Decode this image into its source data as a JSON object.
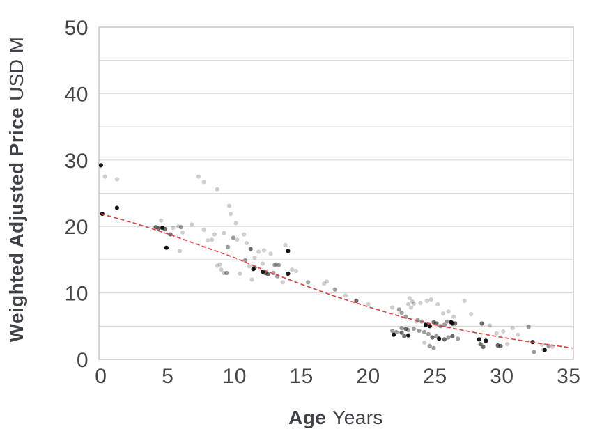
{
  "chart_data": {
    "type": "scatter",
    "title": "",
    "x_axis": {
      "title_bold": "Age",
      "title_regular": "Years",
      "ticks": [
        0,
        5,
        10,
        15,
        20,
        25,
        30,
        35
      ],
      "range": [
        0,
        35.3
      ]
    },
    "y_axis": {
      "title_bold": "Weighted Adjusted Price",
      "title_regular": "USD M",
      "ticks": [
        0,
        10,
        20,
        30,
        40,
        50
      ],
      "range": [
        0,
        50
      ],
      "gridline_step": 5
    },
    "grid": "horizontal-only",
    "legend": "none",
    "colors": {
      "text": "#43454a",
      "gridline": "#dddddd",
      "plot_border": "#c6c6c6",
      "trend": "#e04444",
      "point_base": "#0a0a0a"
    },
    "point_shades": {
      "1": "rgba(10,10,10,0.95)",
      "2": "rgba(10,10,10,0.60)",
      "3": "rgba(10,10,10,0.40)",
      "4": "rgba(10,10,10,0.20)"
    },
    "points": [
      [
        0.0,
        29.2,
        1
      ],
      [
        0.3,
        27.5,
        4
      ],
      [
        1.2,
        27.1,
        4
      ],
      [
        1.2,
        22.8,
        1
      ],
      [
        0.1,
        21.9,
        1
      ],
      [
        4.1,
        19.9,
        2
      ],
      [
        4.3,
        19.7,
        2
      ],
      [
        4.5,
        20.9,
        4
      ],
      [
        4.6,
        19.8,
        1
      ],
      [
        4.8,
        19.6,
        2
      ],
      [
        5.2,
        18.8,
        2
      ],
      [
        5.4,
        19.8,
        4
      ],
      [
        5.8,
        20.0,
        4
      ],
      [
        6.0,
        19.9,
        3
      ],
      [
        4.9,
        16.8,
        1
      ],
      [
        5.9,
        16.3,
        4
      ],
      [
        6.1,
        19.1,
        4
      ],
      [
        6.8,
        20.3,
        4
      ],
      [
        7.7,
        19.5,
        4
      ],
      [
        7.3,
        27.5,
        4
      ],
      [
        7.7,
        26.7,
        4
      ],
      [
        8.7,
        25.6,
        4
      ],
      [
        9.6,
        23.1,
        4
      ],
      [
        9.7,
        21.9,
        4
      ],
      [
        10.1,
        20.5,
        4
      ],
      [
        8.0,
        17.9,
        4
      ],
      [
        8.3,
        18.0,
        4
      ],
      [
        8.5,
        18.8,
        4
      ],
      [
        9.2,
        19.0,
        4
      ],
      [
        9.5,
        16.9,
        3
      ],
      [
        9.9,
        18.3,
        3
      ],
      [
        10.2,
        18.0,
        4
      ],
      [
        10.7,
        18.8,
        4
      ],
      [
        8.9,
        14.3,
        4
      ],
      [
        8.7,
        14.1,
        4
      ],
      [
        9.0,
        13.5,
        4
      ],
      [
        9.4,
        13.0,
        3
      ],
      [
        9.2,
        13.0,
        4
      ],
      [
        10.4,
        12.9,
        4
      ],
      [
        10.8,
        14.9,
        3
      ],
      [
        11.1,
        14.0,
        4
      ],
      [
        10.9,
        17.5,
        4
      ],
      [
        11.2,
        16.6,
        2
      ],
      [
        11.5,
        15.3,
        4
      ],
      [
        11.8,
        16.2,
        4
      ],
      [
        12.2,
        16.4,
        4
      ],
      [
        12.7,
        15.9,
        4
      ],
      [
        11.4,
        13.6,
        1
      ],
      [
        11.5,
        13.8,
        2
      ],
      [
        12.1,
        13.2,
        1
      ],
      [
        12.3,
        13.0,
        2
      ],
      [
        12.5,
        12.8,
        2
      ],
      [
        12.9,
        13.0,
        3
      ],
      [
        13.2,
        12.5,
        3
      ],
      [
        11.3,
        12.0,
        4
      ],
      [
        13.0,
        14.2,
        3
      ],
      [
        13.3,
        14.2,
        3
      ],
      [
        13.1,
        14.3,
        4
      ],
      [
        13.8,
        17.2,
        4
      ],
      [
        14.0,
        16.3,
        1
      ],
      [
        14.0,
        12.9,
        1
      ],
      [
        14.3,
        13.5,
        4
      ],
      [
        14.6,
        13.3,
        4
      ],
      [
        13.6,
        11.6,
        4
      ],
      [
        12.1,
        14.4,
        4
      ],
      [
        15.5,
        11.6,
        3
      ],
      [
        16.7,
        11.4,
        4
      ],
      [
        16.9,
        11.7,
        4
      ],
      [
        17.5,
        10.5,
        3
      ],
      [
        18.3,
        9.6,
        4
      ],
      [
        19.1,
        8.8,
        2
      ],
      [
        20.0,
        8.3,
        4
      ],
      [
        21.8,
        7.8,
        4
      ],
      [
        22.3,
        7.5,
        3
      ],
      [
        23.0,
        8.3,
        4
      ],
      [
        23.1,
        9.2,
        4
      ],
      [
        23.3,
        8.7,
        4
      ],
      [
        23.9,
        8.5,
        4
      ],
      [
        24.4,
        8.8,
        4
      ],
      [
        24.7,
        9.0,
        4
      ],
      [
        25.2,
        8.3,
        4
      ],
      [
        25.6,
        6.9,
        4
      ],
      [
        26.0,
        7.2,
        4
      ],
      [
        26.4,
        6.4,
        4
      ],
      [
        22.5,
        7.0,
        3
      ],
      [
        23.4,
        8.4,
        4
      ],
      [
        27.2,
        8.8,
        4
      ],
      [
        27.7,
        6.8,
        4
      ],
      [
        23.2,
        7.8,
        4
      ],
      [
        22.8,
        6.4,
        3
      ],
      [
        23.7,
        5.9,
        3
      ],
      [
        24.0,
        5.7,
        3
      ],
      [
        24.3,
        5.2,
        1
      ],
      [
        24.6,
        5.0,
        1
      ],
      [
        24.9,
        5.6,
        2
      ],
      [
        25.1,
        5.4,
        2
      ],
      [
        25.4,
        5.0,
        3
      ],
      [
        25.7,
        5.2,
        3
      ],
      [
        25.9,
        5.7,
        3
      ],
      [
        26.2,
        5.6,
        1
      ],
      [
        26.3,
        5.4,
        1
      ],
      [
        26.5,
        5.4,
        2
      ],
      [
        23.6,
        5.7,
        4
      ],
      [
        22.5,
        4.7,
        3
      ],
      [
        22.8,
        4.6,
        2
      ],
      [
        23.0,
        4.4,
        3
      ],
      [
        28.5,
        5.4,
        2
      ],
      [
        29.1,
        5.1,
        4
      ],
      [
        30.8,
        4.7,
        4
      ],
      [
        32.0,
        4.9,
        3
      ],
      [
        21.8,
        4.3,
        3
      ],
      [
        22.1,
        4.1,
        3
      ],
      [
        22.5,
        4.0,
        2
      ],
      [
        22.7,
        3.5,
        2
      ],
      [
        23.4,
        4.6,
        3
      ],
      [
        23.8,
        4.3,
        3
      ],
      [
        24.2,
        4.1,
        3
      ],
      [
        24.5,
        3.8,
        3
      ],
      [
        24.8,
        3.3,
        2
      ],
      [
        25.1,
        3.5,
        3
      ],
      [
        25.3,
        3.1,
        1
      ],
      [
        25.7,
        3.0,
        2
      ],
      [
        26.0,
        3.3,
        3
      ],
      [
        26.3,
        3.5,
        2
      ],
      [
        26.7,
        3.1,
        3
      ],
      [
        21.9,
        3.7,
        1
      ],
      [
        23.0,
        3.6,
        1
      ],
      [
        24.2,
        2.5,
        4
      ],
      [
        24.6,
        2.0,
        3
      ],
      [
        24.9,
        1.7,
        3
      ],
      [
        28.3,
        3.0,
        1
      ],
      [
        28.8,
        2.8,
        1
      ],
      [
        28.4,
        2.3,
        2
      ],
      [
        28.6,
        1.9,
        2
      ],
      [
        29.6,
        3.9,
        4
      ],
      [
        29.7,
        2.1,
        2
      ],
      [
        29.9,
        2.0,
        2
      ],
      [
        30.1,
        4.2,
        4
      ],
      [
        30.4,
        2.3,
        4
      ],
      [
        31.2,
        3.7,
        4
      ],
      [
        32.3,
        2.6,
        1
      ],
      [
        32.4,
        1.1,
        3
      ],
      [
        33.0,
        2.2,
        4
      ],
      [
        33.1,
        1.5,
        4
      ],
      [
        33.2,
        1.4,
        1
      ],
      [
        33.5,
        2.0,
        3
      ],
      [
        33.8,
        1.9,
        4
      ]
    ],
    "trend_line": {
      "style": "dashed",
      "color": "#e04444",
      "points": [
        [
          0,
          21.9
        ],
        [
          2.5,
          20.5
        ],
        [
          5,
          18.9
        ],
        [
          7.5,
          17.1
        ],
        [
          10,
          15.3
        ],
        [
          12.5,
          13.2
        ],
        [
          15,
          11.3
        ],
        [
          17.5,
          9.5
        ],
        [
          20,
          7.9
        ],
        [
          22.5,
          6.4
        ],
        [
          25,
          5.2
        ],
        [
          27.5,
          4.2
        ],
        [
          30,
          3.3
        ],
        [
          32.5,
          2.5
        ],
        [
          35.3,
          1.7
        ]
      ]
    }
  }
}
